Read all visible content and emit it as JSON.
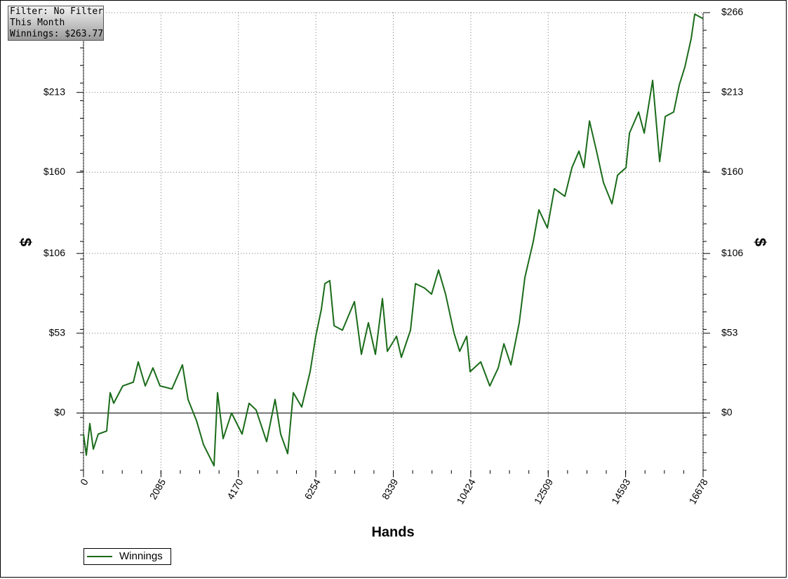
{
  "info_box": {
    "lines": [
      "Filter: No Filter",
      "This Month",
      "Winnings: $263.77"
    ]
  },
  "chart_data": {
    "type": "line",
    "x_label": "Hands",
    "y_label": "$",
    "y2_label": "$",
    "x": [
      0,
      76,
      170,
      264,
      397,
      623,
      718,
      812,
      1058,
      1341,
      1474,
      1663,
      1870,
      2059,
      2380,
      2664,
      2815,
      3041,
      3230,
      3513,
      3608,
      3759,
      3986,
      4269,
      4458,
      4647,
      4930,
      5157,
      5308,
      5497,
      5648,
      5875,
      6101,
      6252,
      6403,
      6498,
      6630,
      6744,
      6970,
      7292,
      7480,
      7669,
      7858,
      8047,
      8179,
      8425,
      8557,
      8802,
      8935,
      9181,
      9369,
      9558,
      9747,
      9974,
      10125,
      10314,
      10408,
      10692,
      10937,
      11164,
      11315,
      11504,
      11730,
      11881,
      12108,
      12259,
      12486,
      12675,
      12958,
      13147,
      13336,
      13469,
      13620,
      13809,
      13998,
      14224,
      14375,
      14602,
      14696,
      14942,
      15093,
      15320,
      15509,
      15660,
      15886,
      16037,
      16189,
      16359,
      16453,
      16678
    ],
    "series": [
      {
        "name": "Winnings",
        "color": "#1a6b1a",
        "values": [
          -14,
          -28,
          -7,
          -24,
          -14,
          -12,
          13.5,
          6.5,
          18,
          20.5,
          34,
          18,
          30,
          18,
          16,
          32,
          9,
          -5,
          -21,
          -35,
          13.5,
          -17,
          0,
          -14,
          6.5,
          2,
          -19,
          9,
          -14,
          -27,
          13.5,
          4,
          27.5,
          51,
          69,
          86,
          88,
          58,
          55,
          74,
          39,
          60,
          39,
          76,
          41,
          51,
          37,
          55,
          86,
          83,
          79,
          95,
          79,
          53,
          41,
          51,
          27.5,
          34,
          18,
          30,
          46,
          32,
          60,
          90,
          114,
          135,
          123,
          149,
          144,
          163,
          174,
          163,
          194,
          174,
          153,
          139,
          158,
          163,
          186,
          200,
          186,
          221,
          167,
          197,
          200,
          218,
          230,
          249,
          265,
          262
        ]
      }
    ],
    "xlim": [
      0,
      16678
    ],
    "xticks": [
      0,
      2085,
      4170,
      6254,
      8339,
      10424,
      12509,
      14593,
      16678
    ],
    "ylim": [
      -38,
      266
    ],
    "yticks": [
      {
        "value": 0,
        "label": "$0"
      },
      {
        "value": 53,
        "label": "$53"
      },
      {
        "value": 106,
        "label": "$106"
      },
      {
        "value": 160,
        "label": "$160"
      },
      {
        "value": 213,
        "label": "$213"
      },
      {
        "value": 266,
        "label": "$266"
      }
    ],
    "grid": true,
    "legend": "bottom-left"
  }
}
